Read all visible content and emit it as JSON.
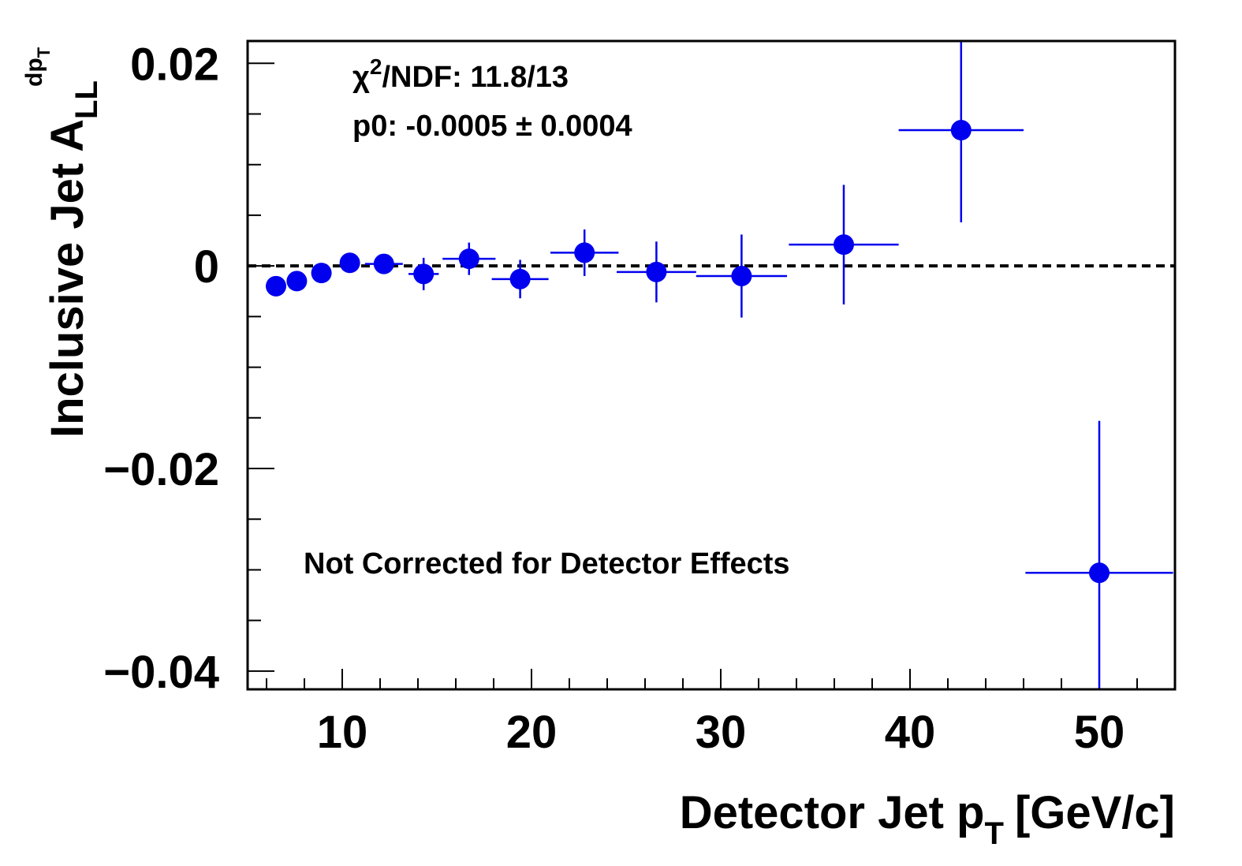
{
  "chart_data": {
    "type": "scatter",
    "xlabel": "Detector Jet p",
    "xlabel_sub": "T",
    "xlabel_units": "[GeV/c]",
    "ylabel": "Inclusive Jet A",
    "ylabel_sub": "LL",
    "ylabel_sup": "dp",
    "ylabel_sup_sub": "T",
    "xlim": [
      5,
      54
    ],
    "ylim": [
      -0.0418,
      0.0222
    ],
    "x_ticks": [
      10,
      20,
      30,
      40,
      50
    ],
    "x_tick_labels": [
      "10",
      "20",
      "30",
      "40",
      "50"
    ],
    "y_ticks": [
      0.02,
      0,
      -0.02,
      -0.04
    ],
    "y_tick_labels": [
      "0.02",
      "0",
      "−0.02",
      "−0.04"
    ],
    "reference_line": 0,
    "marker_color": "#0000ee",
    "series": [
      {
        "points": [
          {
            "x": 6.5,
            "y": -0.002,
            "xerr": 0.0,
            "yerr": 0.0006
          },
          {
            "x": 7.6,
            "y": -0.0015,
            "xerr": 0.0,
            "yerr": 0.0008
          },
          {
            "x": 8.9,
            "y": -0.0007,
            "xerr": 0.0,
            "yerr": 0.0007
          },
          {
            "x": 10.4,
            "y": 0.0003,
            "xerr": 0.0,
            "yerr": 0.0006
          },
          {
            "x": 12.2,
            "y": 0.0002,
            "xerr": 1.0,
            "yerr": 0.0008
          },
          {
            "x": 14.3,
            "y": -0.0008,
            "xerr": 0.8,
            "yerr": 0.0016
          },
          {
            "x": 16.7,
            "y": 0.0007,
            "xerr": 1.4,
            "yerr": 0.0016
          },
          {
            "x": 19.4,
            "y": -0.0013,
            "xerr": 1.5,
            "yerr": 0.0019
          },
          {
            "x": 22.8,
            "y": 0.0013,
            "xerr": 1.8,
            "yerr": 0.0023
          },
          {
            "x": 26.6,
            "y": -0.0006,
            "xerr": 2.1,
            "yerr": 0.003
          },
          {
            "x": 31.1,
            "y": -0.001,
            "xerr": 2.4,
            "yerr": 0.0041
          },
          {
            "x": 36.5,
            "y": 0.0021,
            "xerr": 2.9,
            "yerr": 0.0059
          },
          {
            "x": 42.7,
            "y": 0.0134,
            "xerr": 3.3,
            "yerr": 0.0091
          },
          {
            "x": 50.0,
            "y": -0.0303,
            "xerr": 3.9,
            "yerr": 0.015
          }
        ]
      }
    ],
    "annotations": {
      "fit_chi2_prefix": "χ",
      "fit_chi2_sup": "2",
      "fit_chi2_rest": "/NDF: 11.8/13",
      "fit_p0": "p0: -0.0005 ± 0.0004",
      "note": "Not Corrected for Detector Effects"
    }
  }
}
